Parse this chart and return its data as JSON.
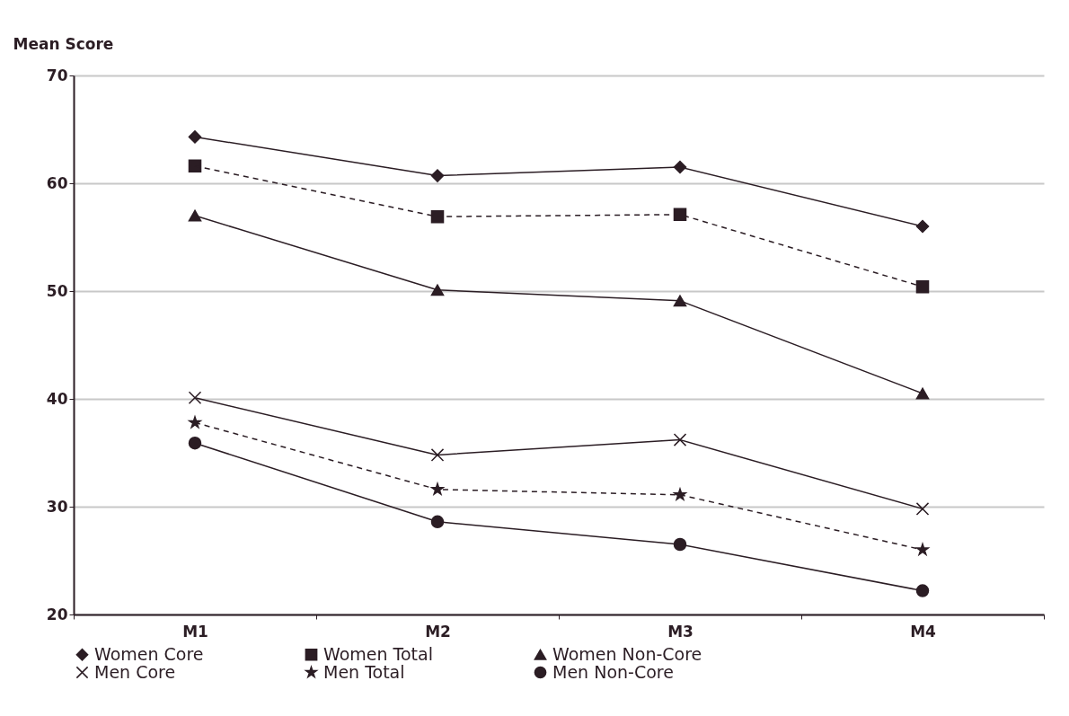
{
  "chart_data": {
    "type": "line",
    "ylabel": "Mean Score",
    "categories": [
      "M1",
      "M2",
      "M3",
      "M4"
    ],
    "ylim": [
      20,
      70
    ],
    "yticks": [
      20,
      30,
      40,
      50,
      60,
      70
    ],
    "grid": "y",
    "legend": "bottom",
    "series": [
      {
        "name": "Women Core",
        "color": "#2b1d24",
        "marker": "diamond",
        "line_style": "solid",
        "values": [
          64.3,
          60.7,
          61.5,
          56.0
        ]
      },
      {
        "name": "Women Total",
        "color": "#2b1d24",
        "marker": "square",
        "line_style": "dashed",
        "values": [
          61.6,
          56.9,
          57.1,
          50.4
        ]
      },
      {
        "name": "Women Non-Core",
        "color": "#2b1d24",
        "marker": "triangle",
        "line_style": "solid",
        "values": [
          57.0,
          50.1,
          49.1,
          40.5
        ]
      },
      {
        "name": "Men Core",
        "color": "#2b1d24",
        "marker": "cross",
        "line_style": "solid",
        "values": [
          40.1,
          34.8,
          36.2,
          29.8
        ]
      },
      {
        "name": "Men Total",
        "color": "#2b1d24",
        "marker": "star",
        "line_style": "dashed",
        "values": [
          37.8,
          31.6,
          31.1,
          26.0
        ]
      },
      {
        "name": "Men Non-Core",
        "color": "#2b1d24",
        "marker": "circle",
        "line_style": "solid",
        "values": [
          35.9,
          28.6,
          26.5,
          22.2
        ]
      }
    ]
  }
}
